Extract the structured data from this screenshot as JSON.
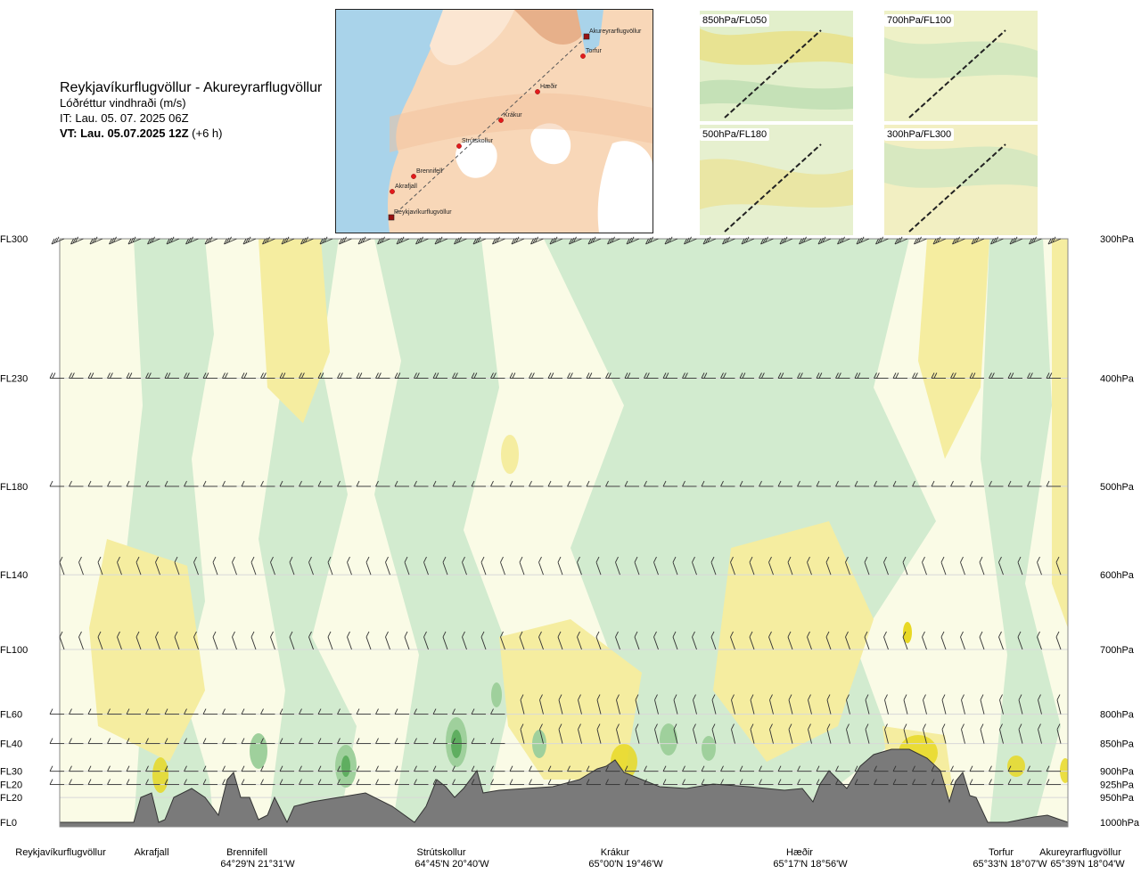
{
  "title": {
    "route": "Reykjavíkurflugvöllur - Akureyrarflugvöllur",
    "parameter": "Lóðréttur vindhraði (m/s)",
    "issue_time": "IT: Lau. 05. 07. 2025 06Z",
    "valid_prefix": "VT: Lau. 05.07.2025 12Z",
    "valid_suffix": "(+6 h)"
  },
  "map": {
    "points": [
      "Akureyrarflugvöllur",
      "Torfur",
      "Hæðir",
      "Krákur",
      "Strútskollur",
      "Brennifell",
      "Akrafjall",
      "Reykjavíkurflugvöllur"
    ]
  },
  "mini_maps": [
    {
      "label": "850hPa/FL050"
    },
    {
      "label": "700hPa/FL100"
    },
    {
      "label": "500hPa/FL180"
    },
    {
      "label": "300hPa/FL300"
    }
  ],
  "chart_data": {
    "type": "heatmap",
    "title": "Lóðréttur vindhraði (m/s)",
    "left_axis": [
      "FL300",
      "FL230",
      "FL180",
      "FL140",
      "FL100",
      "FL60",
      "FL40",
      "FL30",
      "FL20",
      "FL20",
      "FL0"
    ],
    "right_axis": [
      "300hPa",
      "400hPa",
      "500hPa",
      "600hPa",
      "700hPa",
      "800hPa",
      "850hPa",
      "900hPa",
      "925hPa",
      "950hPa",
      "1000hPa"
    ],
    "pressure_levels_hpa": [
      300,
      400,
      500,
      600,
      700,
      800,
      850,
      900,
      925,
      950,
      1000
    ],
    "waypoints": [
      {
        "name": "Reykjavíkurflugvöllur",
        "coord": ""
      },
      {
        "name": "Akrafjall",
        "coord": ""
      },
      {
        "name": "Brennifell",
        "coord": "64°29'N 21°31'W"
      },
      {
        "name": "Strútskollur",
        "coord": "64°45'N 20°40'W"
      },
      {
        "name": "Krákur",
        "coord": "65°00'N 19°46'W"
      },
      {
        "name": "Hæðir",
        "coord": "65°17'N 18°56'W"
      },
      {
        "name": "Torfur",
        "coord": "65°33'N 18°07'W"
      },
      {
        "name": "Akureyrarflugvöllur",
        "coord": "65°39'N 18°04'W"
      }
    ],
    "colors": {
      "strong_up": "#e8d824",
      "up": "#f5eda0",
      "weak": "#fafbe6",
      "down": "#d2ebcf",
      "strong_down": "#9fd09c",
      "very_strong_down": "#5fae60",
      "terrain": "#7a7a7a"
    },
    "grid": true
  }
}
